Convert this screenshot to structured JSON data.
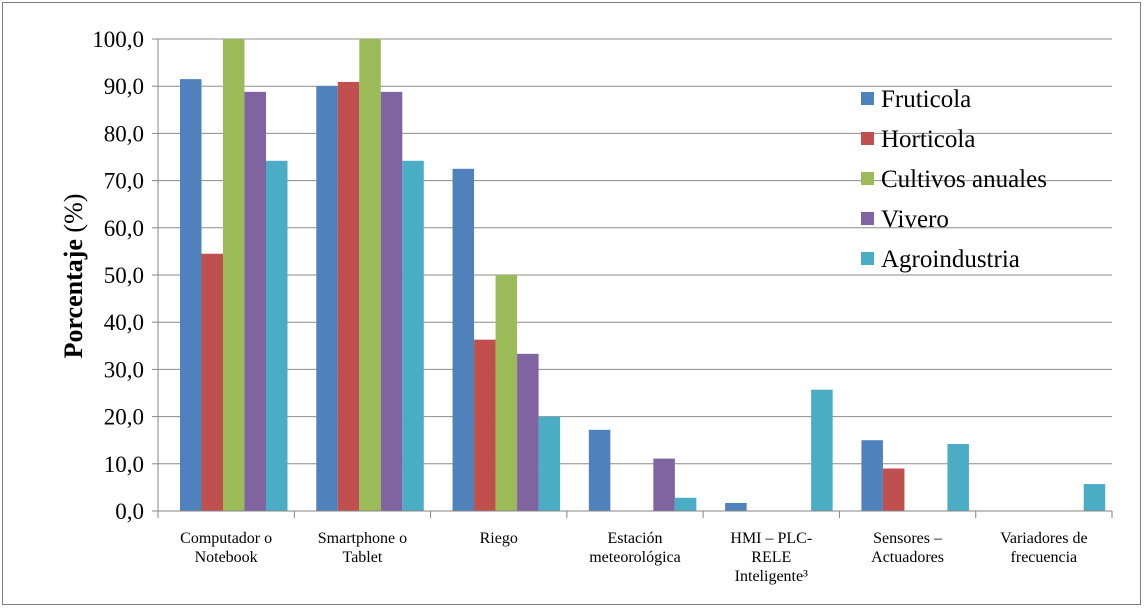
{
  "chart_data": {
    "type": "bar",
    "ylabel_bold": "Porcentaje",
    "ylabel_unit": " (%)",
    "ylim": [
      0,
      100
    ],
    "y_ticks": [
      "0,0",
      "10,0",
      "20,0",
      "30,0",
      "40,0",
      "50,0",
      "60,0",
      "70,0",
      "80,0",
      "90,0",
      "100,0"
    ],
    "grid": true,
    "legend_position": "top-right",
    "categories": [
      [
        "Computador o",
        "Notebook"
      ],
      [
        "Smartphone o",
        "Tablet"
      ],
      [
        "Riego"
      ],
      [
        "Estación",
        "meteorológica"
      ],
      [
        "HMI – PLC-",
        "RELE",
        "Inteligente³"
      ],
      [
        "Sensores –",
        "Actuadores"
      ],
      [
        "Variadores de",
        "frecuencia"
      ]
    ],
    "series": [
      {
        "name": "Fruticola",
        "color": "#4f81bd",
        "values": [
          91.5,
          90.0,
          72.5,
          17.2,
          1.7,
          15.0,
          0
        ]
      },
      {
        "name": "Horticola",
        "color": "#c0504d",
        "values": [
          54.5,
          90.9,
          36.3,
          0,
          0,
          9.0,
          0
        ]
      },
      {
        "name": "Cultivos anuales",
        "color": "#9bbb59",
        "values": [
          100.0,
          100.0,
          50.0,
          0,
          0,
          0,
          0
        ]
      },
      {
        "name": "Vivero",
        "color": "#8064a2",
        "values": [
          88.8,
          88.8,
          33.3,
          11.1,
          0,
          0,
          0
        ]
      },
      {
        "name": "Agroindustria",
        "color": "#4bacc6",
        "values": [
          74.2,
          74.2,
          20.0,
          2.8,
          25.7,
          14.2,
          5.7
        ]
      }
    ]
  }
}
